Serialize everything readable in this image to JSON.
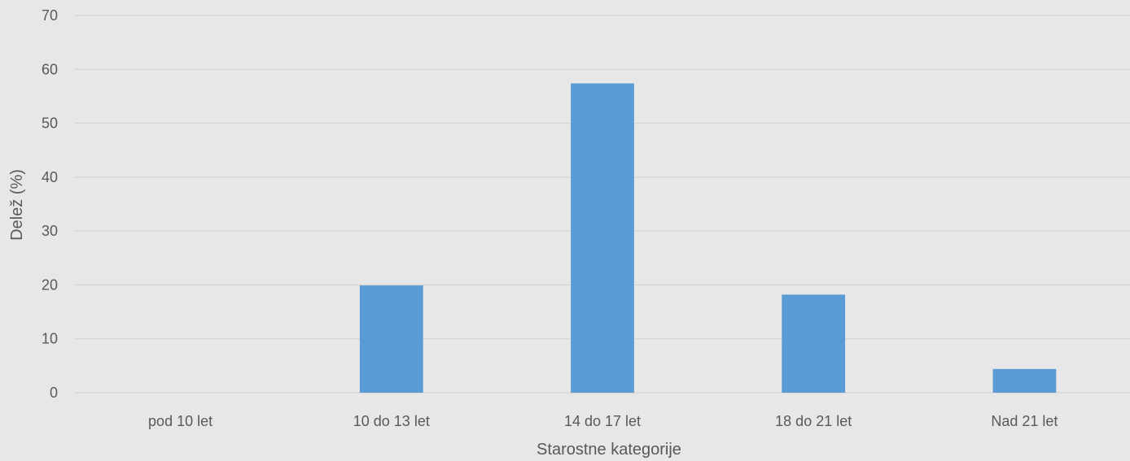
{
  "chart_data": {
    "type": "bar",
    "title": "",
    "xlabel": "Starostne kategorije",
    "ylabel": "Delež (%)",
    "categories": [
      "pod 10 let",
      "10 do 13 let",
      "14 do 17 let",
      "18 do 21 let",
      "Nad 21 let"
    ],
    "series": [
      {
        "values": [
          0,
          19.9,
          57.4,
          18.2,
          4.4
        ]
      }
    ],
    "ylim": [
      0,
      70
    ],
    "yticks": [
      0,
      10,
      20,
      30,
      40,
      50,
      60,
      70
    ],
    "grid": true,
    "legend": "none",
    "colors": {
      "bar": "#5b9bd5",
      "background": "#e7e7e7",
      "grid": "#d4d4d4",
      "text": "#595959"
    }
  }
}
